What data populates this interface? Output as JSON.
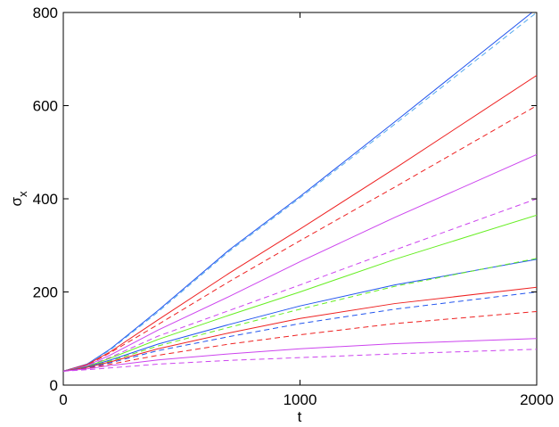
{
  "chart_data": {
    "type": "line",
    "xlabel": "t",
    "ylabel": "σ",
    "ylabel_sub": "x",
    "x": [
      0,
      100,
      200,
      400,
      700,
      1000,
      1400,
      2000
    ],
    "xlim": [
      0,
      2000
    ],
    "xticks": [
      0,
      1000,
      2000
    ],
    "ylim": [
      0,
      800
    ],
    "yticks": [
      0,
      200,
      400,
      600,
      800
    ],
    "grid": false,
    "series": [
      {
        "color": "#2255ee",
        "linestyle": "solid",
        "values": [
          30,
          45,
          78,
          160,
          290,
          405,
          565,
          808
        ]
      },
      {
        "color": "#55aaee",
        "linestyle": "dashed",
        "values": [
          30,
          44,
          76,
          157,
          287,
          402,
          560,
          800
        ]
      },
      {
        "color": "#ee2222",
        "linestyle": "solid",
        "values": [
          30,
          44,
          72,
          140,
          240,
          335,
          465,
          665
        ]
      },
      {
        "color": "#ee2222",
        "linestyle": "dashed",
        "values": [
          30,
          43,
          70,
          130,
          222,
          310,
          425,
          600
        ]
      },
      {
        "color": "#cc44ee",
        "linestyle": "solid",
        "values": [
          30,
          42,
          65,
          118,
          190,
          265,
          360,
          495
        ]
      },
      {
        "color": "#cc44ee",
        "linestyle": "dashed",
        "values": [
          30,
          41,
          60,
          105,
          160,
          215,
          290,
          400
        ]
      },
      {
        "color": "#66ee22",
        "linestyle": "solid",
        "values": [
          30,
          40,
          58,
          98,
          150,
          200,
          270,
          365
        ]
      },
      {
        "color": "#2255ee",
        "linestyle": "solid",
        "values": [
          30,
          39,
          54,
          88,
          130,
          170,
          215,
          270
        ]
      },
      {
        "color": "#66ee22",
        "linestyle": "dashed",
        "values": [
          30,
          38,
          52,
          84,
          124,
          163,
          212,
          272
        ]
      },
      {
        "color": "#ee2222",
        "linestyle": "solid",
        "values": [
          30,
          38,
          50,
          78,
          112,
          143,
          175,
          210
        ]
      },
      {
        "color": "#2255ee",
        "linestyle": "dashed",
        "values": [
          30,
          37,
          48,
          74,
          104,
          132,
          163,
          200
        ]
      },
      {
        "color": "#ee2222",
        "linestyle": "dashed",
        "values": [
          30,
          36,
          45,
          64,
          88,
          108,
          132,
          158
        ]
      },
      {
        "color": "#cc44ee",
        "linestyle": "solid",
        "values": [
          30,
          35,
          42,
          54,
          67,
          78,
          89,
          100
        ]
      },
      {
        "color": "#cc44ee",
        "linestyle": "dashed",
        "values": [
          30,
          33,
          37,
          45,
          53,
          59,
          67,
          77
        ]
      }
    ]
  }
}
